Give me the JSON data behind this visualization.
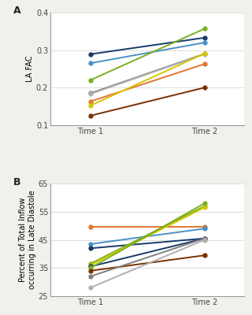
{
  "panel_A": {
    "title_label": "A",
    "ylabel": "LA FAC",
    "xlabel_t1": "Time 1",
    "xlabel_t2": "Time 2",
    "ylim": [
      0.1,
      0.4
    ],
    "yticks": [
      0.1,
      0.2,
      0.3,
      0.4
    ],
    "lines": [
      {
        "t1": 0.289,
        "t2": 0.333,
        "color": "#1a3a6b"
      },
      {
        "t1": 0.265,
        "t2": 0.32,
        "color": "#4a90c4"
      },
      {
        "t1": 0.22,
        "t2": 0.357,
        "color": "#7ab020"
      },
      {
        "t1": 0.185,
        "t2": 0.29,
        "color": "#808080"
      },
      {
        "t1": 0.183,
        "t2": 0.289,
        "color": "#b0b0b0"
      },
      {
        "t1": 0.163,
        "t2": 0.263,
        "color": "#e07830"
      },
      {
        "t1": 0.152,
        "t2": 0.291,
        "color": "#d4c800"
      },
      {
        "t1": 0.125,
        "t2": 0.2,
        "color": "#7a3000"
      }
    ]
  },
  "panel_B": {
    "title_label": "B",
    "ylabel": "Percent of Total Inflow\noccurring in Late Diastole",
    "xlabel_t1": "Time 1",
    "xlabel_t2": "Time 2",
    "ylim": [
      25,
      65
    ],
    "yticks": [
      25,
      35,
      45,
      55,
      65
    ],
    "lines": [
      {
        "t1": 49.5,
        "t2": 49.5,
        "color": "#e07830"
      },
      {
        "t1": 43.5,
        "t2": 49.0,
        "color": "#4a90c4"
      },
      {
        "t1": 42.0,
        "t2": 45.5,
        "color": "#1a3a6b"
      },
      {
        "t1": 36.5,
        "t2": 57.0,
        "color": "#7ab020"
      },
      {
        "t1": 36.0,
        "t2": 56.5,
        "color": "#d4c800"
      },
      {
        "t1": 35.5,
        "t2": 45.5,
        "color": "#1a3a6b"
      },
      {
        "t1": 35.0,
        "t2": 58.0,
        "color": "#7ab020"
      },
      {
        "t1": 34.0,
        "t2": 39.5,
        "color": "#7a3000"
      },
      {
        "t1": 32.0,
        "t2": 45.5,
        "color": "#808080"
      },
      {
        "t1": 28.0,
        "t2": 45.0,
        "color": "#b0b0b0"
      }
    ]
  },
  "bg_color": "#ffffff",
  "fig_bg_color": "#f0f0ec",
  "line_width": 1.4,
  "marker_size": 3.5,
  "tick_fontsize": 7,
  "label_fontsize": 7,
  "xlabel_fontsize": 8
}
